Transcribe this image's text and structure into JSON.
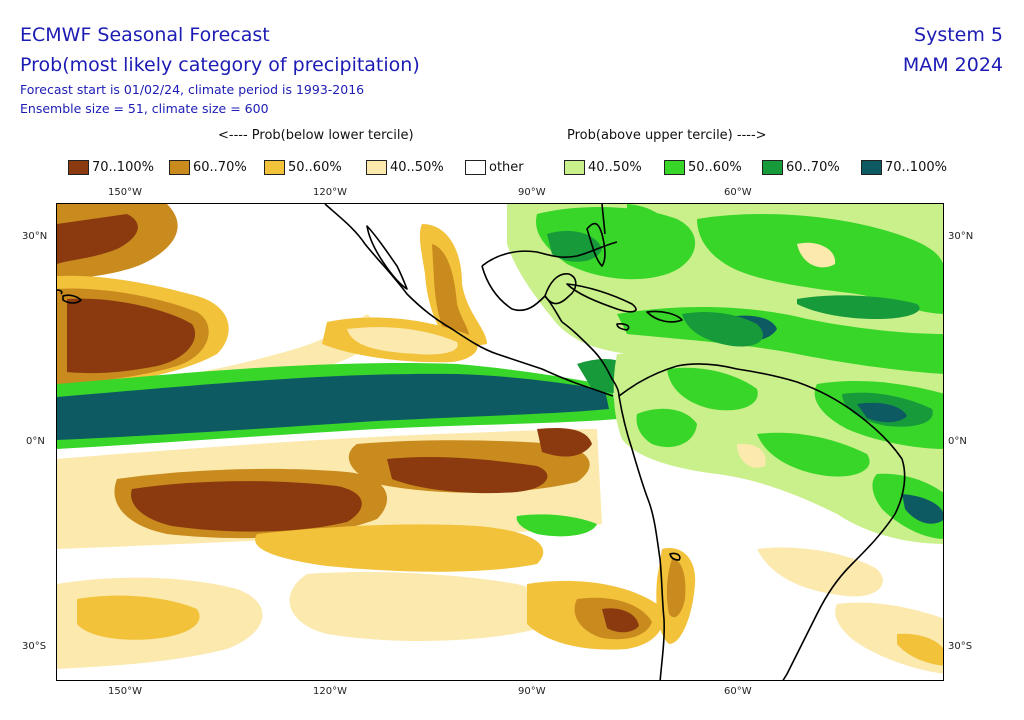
{
  "header": {
    "title": "ECMWF Seasonal Forecast",
    "subtitle": "Prob(most likely category of precipitation)",
    "forecast_info": "Forecast start is 01/02/24, climate period is 1993-2016",
    "ensemble_info": "Ensemble size = 51, climate size = 600",
    "system": "System 5",
    "season": "MAM 2024"
  },
  "legend": {
    "below_header": "<---- Prob(below lower tercile)",
    "above_header": "Prob(above upper tercile) ---->",
    "items": [
      {
        "label": "70..100%",
        "color": "#8b3a0f"
      },
      {
        "label": "60..70%",
        "color": "#c98a1e"
      },
      {
        "label": "50..60%",
        "color": "#f2c23a"
      },
      {
        "label": "40..50%",
        "color": "#fbe9ad"
      },
      {
        "label": "other",
        "color": "#ffffff"
      },
      {
        "label": "40..50%",
        "color": "#c9f08a"
      },
      {
        "label": "50..60%",
        "color": "#39d62a"
      },
      {
        "label": "60..70%",
        "color": "#179a3a"
      },
      {
        "label": "70..100%",
        "color": "#0e5a63"
      }
    ]
  },
  "map": {
    "lon_ticks": [
      "150°W",
      "120°W",
      "90°W",
      "60°W"
    ],
    "lat_ticks_left": [
      "30°N",
      "0°N",
      "30°S"
    ],
    "lat_ticks_right": [
      "30°N",
      "0°N",
      "30°S"
    ]
  }
}
